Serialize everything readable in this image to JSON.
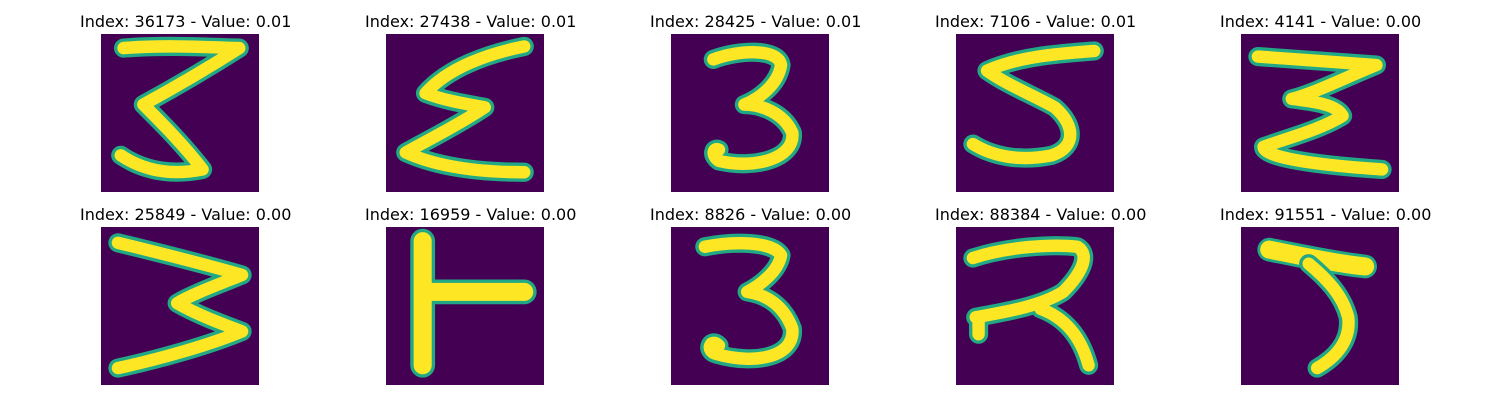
{
  "colors": {
    "background": "#440154",
    "stroke_edge": "#22a884",
    "stroke_core": "#fde725"
  },
  "panels": [
    {
      "title": "Index: 36173 - Value: 0.01",
      "glyph": "digit-3-angular"
    },
    {
      "title": "Index: 27438 - Value: 0.01",
      "glyph": "sigma-like"
    },
    {
      "title": "Index: 28425 - Value: 0.01",
      "glyph": "digit-3"
    },
    {
      "title": "Index: 7106 - Value: 0.01",
      "glyph": "digit-5"
    },
    {
      "title": "Index: 4141 - Value: 0.00",
      "glyph": "sigma-like"
    },
    {
      "title": "Index: 25849 - Value: 0.00",
      "glyph": "digit-3-angular"
    },
    {
      "title": "Index: 16959 - Value: 0.00",
      "glyph": "t-like"
    },
    {
      "title": "Index: 8826 - Value: 0.00",
      "glyph": "digit-3"
    },
    {
      "title": "Index: 88384 - Value: 0.00",
      "glyph": "digit-2-like"
    },
    {
      "title": "Index: 91551 - Value: 0.00",
      "glyph": "digit-5"
    }
  ]
}
